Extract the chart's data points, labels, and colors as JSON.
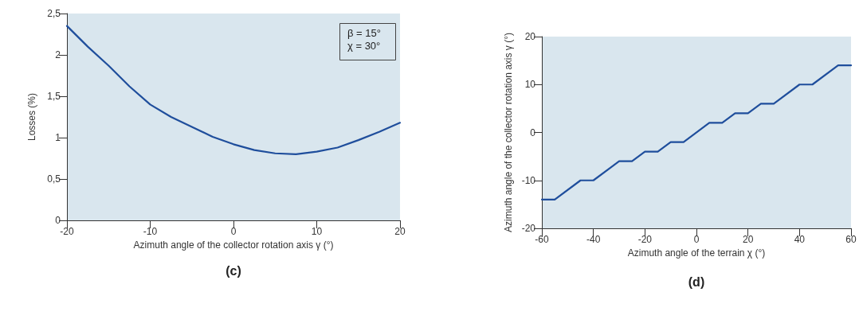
{
  "chart_data": [
    {
      "type": "line",
      "xlabel": "Azimuth angle of the collector rotation axis γ (°)",
      "ylabel": "Losses (%)",
      "x": [
        -20,
        -17.5,
        -15,
        -12.5,
        -10,
        -7.5,
        -5,
        -2.5,
        0,
        2.5,
        5,
        7.5,
        10,
        12.5,
        15,
        17.5,
        20
      ],
      "series": [
        {
          "color": "#1f4e9c",
          "values": [
            2.35,
            2.1,
            1.87,
            1.62,
            1.4,
            1.25,
            1.13,
            1.01,
            0.92,
            0.85,
            0.81,
            0.8,
            0.83,
            0.88,
            0.97,
            1.07,
            1.18
          ]
        }
      ],
      "xlim": [
        -20,
        20
      ],
      "xticks": [
        -20,
        -10,
        0,
        10,
        20
      ],
      "ylim": [
        0,
        2.5
      ],
      "yticks": [
        0,
        {
          "value": 0.5,
          "label": "0,5"
        },
        1,
        {
          "value": 1.5,
          "label": "1,5"
        },
        2,
        {
          "value": 2.5,
          "label": "2,5"
        }
      ],
      "grid": false,
      "marker": "none",
      "line_style": "solid",
      "annotations": [
        "β = 15°",
        "χ = 30°",
        "(c)"
      ]
    },
    {
      "type": "line",
      "xlabel": "Azimuth angle of the terrain χ (°)",
      "ylabel": "Azimuth angle of the collector rotation axis γ (°)",
      "x": [
        -60,
        -55,
        -45,
        -40,
        -30,
        -25,
        -20,
        -15,
        -10,
        -5,
        5,
        10,
        15,
        20,
        25,
        30,
        40,
        45,
        55,
        60
      ],
      "series": [
        {
          "color": "#1f4e9c",
          "values": [
            -14,
            -14,
            -10,
            -10,
            -6,
            -6,
            -4,
            -4,
            -2,
            -2,
            2,
            2,
            4,
            4,
            6,
            6,
            10,
            10,
            14,
            14
          ]
        }
      ],
      "xlim": [
        -60,
        60
      ],
      "xticks": [
        -60,
        -40,
        -20,
        0,
        20,
        40,
        60
      ],
      "ylim": [
        -20,
        20
      ],
      "yticks": [
        -20,
        -10,
        0,
        10,
        20
      ],
      "grid": false,
      "marker": "none",
      "line_style": "solid",
      "annotations": [
        "(d)"
      ]
    }
  ]
}
